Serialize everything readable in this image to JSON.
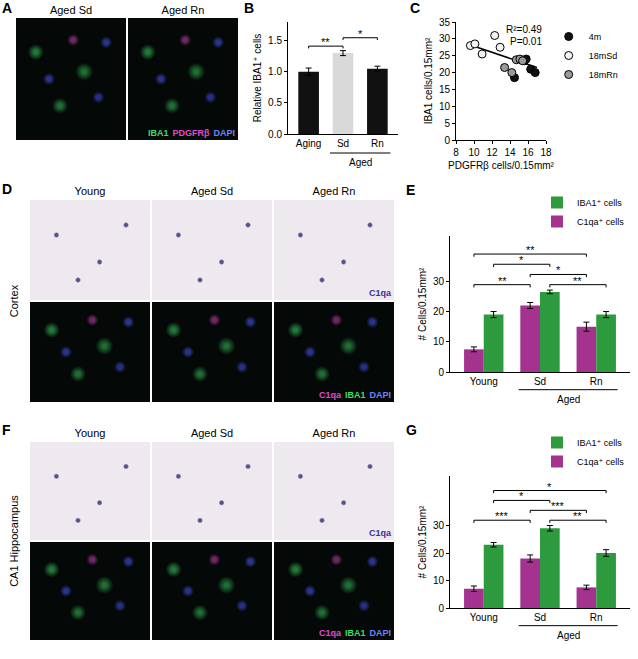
{
  "chart_data": [
    {
      "panel": "B",
      "type": "bar",
      "categories": [
        "Aging",
        "Sd",
        "Rn"
      ],
      "values": [
        1.0,
        1.3,
        1.05
      ],
      "error": [
        0.06,
        0.04,
        0.04
      ],
      "colors": [
        "#111111",
        "#d9d9d9",
        "#111111"
      ],
      "ylabel": "Relative IBA1⁺ cells",
      "ylim": [
        0,
        1.8
      ],
      "yticks": [
        {
          "value": 0,
          "label": "0.0"
        },
        {
          "value": 0.5,
          "label": "0.5"
        },
        {
          "value": 1,
          "label": "1.0"
        },
        {
          "value": 1.5,
          "label": "1.5"
        }
      ],
      "groups": [
        {
          "label": "Aged",
          "from": 1,
          "to": 2
        }
      ],
      "significance": [
        {
          "from": [
            0,
            0
          ],
          "to": [
            1,
            0
          ],
          "text": "**"
        },
        {
          "from": [
            1,
            0
          ],
          "to": [
            2,
            0
          ],
          "text": "*"
        }
      ],
      "grid": false
    },
    {
      "panel": "C",
      "type": "scatter",
      "xlabel": "PDGFRβ cells/0.15mm²",
      "ylabel": "IBA1 cells/0.15mm²",
      "xlim": [
        8,
        18
      ],
      "xticks": [
        8,
        10,
        12,
        14,
        16,
        18
      ],
      "ylim": [
        0,
        35
      ],
      "yticks": [
        0,
        5,
        10,
        15,
        20,
        25,
        30,
        35
      ],
      "marker": "circle",
      "series": [
        {
          "name": "4m",
          "color": "#111111",
          "x": [
            14.5,
            15.6,
            15.8,
            16.3,
            16.8
          ],
          "y": [
            18.5,
            23.5,
            24,
            21,
            20
          ]
        },
        {
          "name": "18mSd",
          "color": "#f2f2f2",
          "x": [
            9.6,
            10.1,
            10.9,
            12.3,
            12.9
          ],
          "y": [
            28,
            28.5,
            25.5,
            31,
            27.5
          ]
        },
        {
          "name": "18mRn",
          "color": "#9a9a9a",
          "x": [
            13.4,
            14.2,
            14.7,
            15.1,
            15.4
          ],
          "y": [
            21.5,
            20,
            23.8,
            24,
            23.5
          ]
        }
      ],
      "fit": {
        "x": [
          9.6,
          17
        ],
        "y": [
          28.2,
          21.5
        ]
      },
      "annotations": [
        {
          "text": "R²=0.49"
        },
        {
          "text": "P=0.01"
        }
      ],
      "legend": "right",
      "grid": false
    },
    {
      "panel": "E",
      "type": "bar",
      "categories": [
        "Young",
        "Sd",
        "Rn"
      ],
      "series": [
        {
          "name": "C1qa⁺ cells",
          "color": "#a3338f",
          "values": [
            7.5,
            22,
            15
          ],
          "error": [
            0.8,
            1,
            1.5
          ]
        },
        {
          "name": "IBA1⁺ cells",
          "color": "#2e9a3e",
          "values": [
            19,
            26.5,
            19
          ],
          "error": [
            1,
            0.6,
            1
          ]
        }
      ],
      "ylabel": "# Cells/0.15mm²",
      "ylim": [
        0,
        45
      ],
      "yticks": [
        0,
        10,
        20,
        30
      ],
      "groups": [
        {
          "label": "Aged",
          "from": 1,
          "to": 2
        }
      ],
      "significance": [
        {
          "from": [
            0,
            0
          ],
          "to": [
            1,
            0
          ],
          "text": "**"
        },
        {
          "from": [
            1,
            0
          ],
          "to": [
            2,
            0
          ],
          "text": "*"
        },
        {
          "from": [
            0,
            1
          ],
          "to": [
            1,
            1
          ],
          "text": "*"
        },
        {
          "from": [
            1,
            1
          ],
          "to": [
            2,
            1
          ],
          "text": "**"
        },
        {
          "from": [
            0,
            0
          ],
          "to": [
            2,
            0
          ],
          "text": "**"
        }
      ],
      "legend": "top right",
      "grid": false
    },
    {
      "panel": "G",
      "type": "bar",
      "categories": [
        "Young",
        "Sd",
        "Rn"
      ],
      "series": [
        {
          "name": "C1qa⁺ cells",
          "color": "#a3338f",
          "values": [
            7,
            18,
            7.5
          ],
          "error": [
            1,
            1.3,
            0.8
          ]
        },
        {
          "name": "IBA1⁺ cells",
          "color": "#2e9a3e",
          "values": [
            23,
            29,
            20
          ],
          "error": [
            0.8,
            1,
            1.2
          ]
        }
      ],
      "ylabel": "# Cells/0.15mm²",
      "ylim": [
        0,
        48
      ],
      "yticks": [
        0,
        10,
        20,
        30
      ],
      "groups": [
        {
          "label": "Aged",
          "from": 1,
          "to": 2
        }
      ],
      "significance": [
        {
          "from": [
            0,
            0
          ],
          "to": [
            1,
            0
          ],
          "text": "***"
        },
        {
          "from": [
            1,
            0
          ],
          "to": [
            2,
            0
          ],
          "text": "***"
        },
        {
          "from": [
            0,
            1
          ],
          "to": [
            1,
            1
          ],
          "text": "*"
        },
        {
          "from": [
            1,
            1
          ],
          "to": [
            2,
            1
          ],
          "text": "**"
        },
        {
          "from": [
            0,
            1
          ],
          "to": [
            2,
            1
          ],
          "text": "*"
        }
      ],
      "legend": "top right",
      "grid": false
    }
  ],
  "image_panels": [
    {
      "panel": "A",
      "columns": [
        "Aged Sd",
        "Aged Rn"
      ],
      "rows": [
        {
          "style": "fluorescence",
          "caption": [
            {
              "text": "IBA1",
              "color": "#3fdc6a"
            },
            {
              "text": "PDGFRβ",
              "color": "#e04bd0"
            },
            {
              "text": "DAPI",
              "color": "#6a85ff"
            }
          ]
        }
      ]
    },
    {
      "panel": "D",
      "side_label": "Cortex",
      "columns": [
        "Young",
        "Aged Sd",
        "Aged Rn"
      ],
      "rows": [
        {
          "style": "ish",
          "caption": [
            {
              "text": "C1qa",
              "color": "#3b2f96"
            }
          ]
        },
        {
          "style": "fluorescence",
          "caption": [
            {
              "text": "C1qa",
              "color": "#e04bd0"
            },
            {
              "text": "IBA1",
              "color": "#3fdc6a"
            },
            {
              "text": "DAPI",
              "color": "#6a85ff"
            }
          ]
        }
      ]
    },
    {
      "panel": "F",
      "side_label": "CA1 Hippocampus",
      "columns": [
        "Young",
        "Aged Sd",
        "Aged Rn"
      ],
      "rows": [
        {
          "style": "ish",
          "caption": [
            {
              "text": "C1qa",
              "color": "#3b2f96"
            }
          ]
        },
        {
          "style": "fluorescence",
          "caption": [
            {
              "text": "C1qa",
              "color": "#e04bd0"
            },
            {
              "text": "IBA1",
              "color": "#3fdc6a"
            },
            {
              "text": "DAPI",
              "color": "#6a85ff"
            }
          ]
        }
      ]
    }
  ]
}
